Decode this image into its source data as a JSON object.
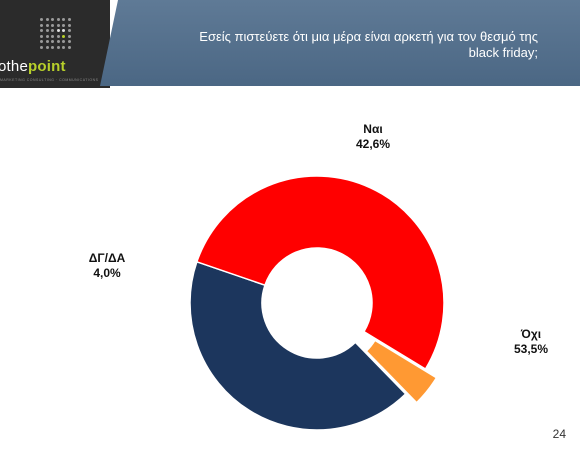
{
  "header": {
    "logo_text_prefix": "o",
    "logo_text_main": "the",
    "logo_text_suffix": "point",
    "logo_tagline": "MARKETING CONSULTING · COMMUNICATIONS",
    "question": "Εσείς πιστεύετε ότι μια μέρα είναι αρκετή για τον θεσμό της black friday;"
  },
  "chart_data": {
    "type": "pie",
    "donut": true,
    "categories": [
      "Ναι",
      "Όχι",
      "ΔΓ/ΔΑ"
    ],
    "values": [
      42.6,
      53.5,
      4.0
    ],
    "value_labels": [
      "42,6%",
      "53,5%",
      "4,0%"
    ],
    "colors": [
      "#1c365d",
      "#ff0000",
      "#ff9933"
    ],
    "exploded": [
      "ΔΓ/ΔΑ"
    ]
  },
  "footer": {
    "page_number": "24"
  }
}
